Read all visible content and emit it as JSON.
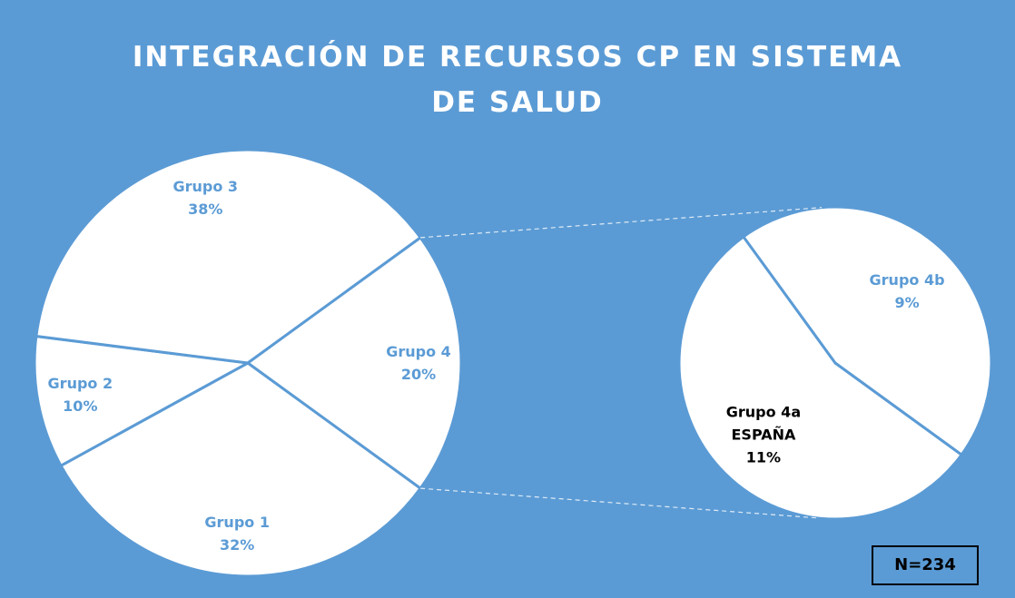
{
  "chart_data": {
    "type": "pie",
    "title": "INTEGRACIÓN DE RECURSOS CP EN SISTEMA DE SALUD",
    "categories": [
      "Grupo 1",
      "Grupo 2",
      "Grupo 3",
      "Grupo 4"
    ],
    "values": [
      32,
      10,
      38,
      20
    ],
    "value_labels": [
      "32%",
      "10%",
      "38%",
      "20%"
    ],
    "color": "#ffffff",
    "label_colors": [
      "#5b9bd5",
      "#5b9bd5",
      "#5b9bd5",
      "#5b9bd5"
    ],
    "secondary": {
      "categories": [
        "Grupo 4a ESPAÑA",
        "Grupo 4b"
      ],
      "values": [
        11,
        9
      ],
      "value_labels": [
        "11%",
        "9%"
      ],
      "label_colors": [
        "#000000",
        "#5b9bd5"
      ]
    },
    "annotation": "N=234"
  }
}
